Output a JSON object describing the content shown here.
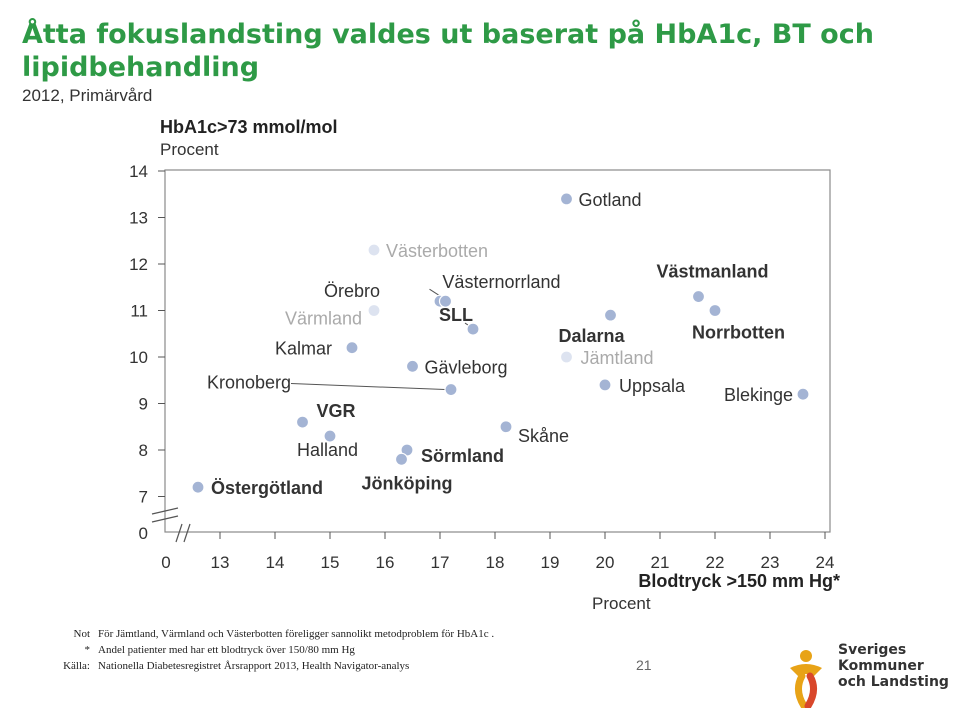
{
  "page": {
    "title": "Åtta fokuslandsting valdes ut baserat på HbA1c,  BT och lipidbehandling",
    "subtitle": "2012, Primärvård",
    "page_number": "21"
  },
  "colors": {
    "title": "#2e9a46",
    "point": "#a4b4d4",
    "point_faded": "#dde3f0",
    "text": "#333333",
    "text_faded": "#aaaaaa"
  },
  "chart_data": {
    "type": "scatter",
    "ylabel_title": "HbA1c>73 mmol/mol",
    "ylabel_unit": "Procent",
    "xlabel_title": "Blodtryck >150 mm Hg*",
    "xlabel_unit": "Procent",
    "xlim": [
      12,
      24
    ],
    "ylim": [
      6.5,
      14
    ],
    "x_break": true,
    "y_break": true,
    "grid": false,
    "x_ticks": [
      13,
      14,
      15,
      16,
      17,
      18,
      19,
      20,
      21,
      22,
      23,
      24
    ],
    "y_ticks": [
      7,
      8,
      9,
      10,
      11,
      12,
      13,
      14
    ],
    "x_zero_label": "0",
    "y_zero_label": "0",
    "points": [
      {
        "label": "Gotland",
        "x": 19.3,
        "y": 13.4,
        "focus": false,
        "faded": false
      },
      {
        "label": "Västerbotten",
        "x": 15.8,
        "y": 12.3,
        "focus": false,
        "faded": true
      },
      {
        "label": "Örebro",
        "x": 17.0,
        "y": 11.2,
        "focus": false,
        "faded": false
      },
      {
        "label": "Västernorrland",
        "x": 17.1,
        "y": 11.2,
        "focus": false,
        "faded": false
      },
      {
        "label": "SLL",
        "x": 17.6,
        "y": 10.6,
        "focus": true,
        "faded": false
      },
      {
        "label": "Värmland",
        "x": 15.8,
        "y": 11.0,
        "focus": false,
        "faded": true
      },
      {
        "label": "Västmanland",
        "x": 21.7,
        "y": 11.3,
        "focus": true,
        "faded": false
      },
      {
        "label": "Norrbotten",
        "x": 22.0,
        "y": 11.0,
        "focus": true,
        "faded": false
      },
      {
        "label": "Dalarna",
        "x": 20.1,
        "y": 10.9,
        "focus": true,
        "faded": false
      },
      {
        "label": "Jämtland",
        "x": 19.3,
        "y": 10.0,
        "focus": false,
        "faded": true
      },
      {
        "label": "Kalmar",
        "x": 15.4,
        "y": 10.2,
        "focus": false,
        "faded": false
      },
      {
        "label": "Gävleborg",
        "x": 16.5,
        "y": 9.8,
        "focus": false,
        "faded": false
      },
      {
        "label": "Kronoberg",
        "x": 17.2,
        "y": 9.3,
        "focus": false,
        "faded": false
      },
      {
        "label": "Uppsala",
        "x": 20.0,
        "y": 9.4,
        "focus": false,
        "faded": false
      },
      {
        "label": "Blekinge",
        "x": 23.6,
        "y": 9.2,
        "focus": false,
        "faded": false
      },
      {
        "label": "VGR",
        "x": 14.5,
        "y": 8.6,
        "focus": true,
        "faded": false
      },
      {
        "label": "Skåne",
        "x": 18.2,
        "y": 8.5,
        "focus": false,
        "faded": false
      },
      {
        "label": "Halland",
        "x": 15.0,
        "y": 8.3,
        "focus": false,
        "faded": false
      },
      {
        "label": "Sörmland",
        "x": 16.4,
        "y": 8.0,
        "focus": true,
        "faded": false
      },
      {
        "label": "Jönköping",
        "x": 16.3,
        "y": 7.8,
        "focus": true,
        "faded": false
      },
      {
        "label": "Östergötland",
        "x": 12.6,
        "y": 7.2,
        "focus": true,
        "faded": false
      }
    ]
  },
  "notes": [
    {
      "key": "Not",
      "text": "För Jämtland, Värmland och Västerbotten föreligger sannolikt metodproblem för HbA1c ."
    },
    {
      "key": "*",
      "text": "Andel patienter med har ett blodtryck över 150/80 mm Hg"
    },
    {
      "key": "Källa:",
      "text": "Nationella Diabetesregistret Årsrapport 2013, Health Navigator-analys"
    }
  ],
  "logo": {
    "line1": "Sveriges",
    "line2": "Kommuner",
    "line3": "och Landsting"
  }
}
